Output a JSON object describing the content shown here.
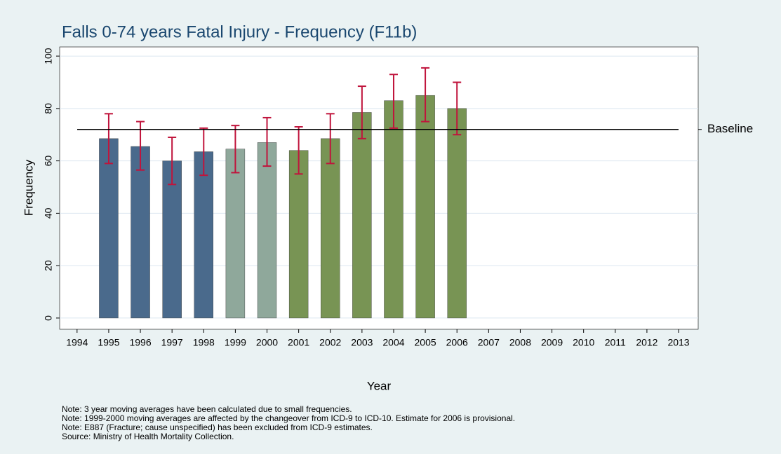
{
  "chart_data": {
    "type": "bar",
    "title": "Falls 0-74 years Fatal Injury - Frequency (F11b)",
    "x_label": "Year",
    "y_label": "Frequency",
    "x": [
      1995,
      1996,
      1997,
      1998,
      1999,
      2000,
      2001,
      2002,
      2003,
      2004,
      2005,
      2006
    ],
    "values": [
      68.5,
      65.5,
      60,
      63.5,
      64.5,
      67,
      64,
      68.5,
      78.5,
      83,
      85,
      80
    ],
    "lower": [
      59,
      56.5,
      51,
      54.5,
      55.5,
      58,
      55,
      59,
      68.5,
      72.5,
      75,
      70
    ],
    "upper": [
      78,
      75,
      69,
      72.5,
      73.5,
      76.5,
      73,
      78,
      88.5,
      93,
      95.5,
      90
    ],
    "colors": [
      "#4a6a8c",
      "#4a6a8c",
      "#4a6a8c",
      "#4a6a8c",
      "#8fa89b",
      "#8fa89b",
      "#789454",
      "#789454",
      "#789454",
      "#789454",
      "#789454",
      "#789454"
    ],
    "error_color": "#c0143c",
    "baseline": {
      "value": 72,
      "label": "Baseline"
    },
    "xlim": [
      1993.45,
      2013.62
    ],
    "xticks": [
      1994,
      1995,
      1996,
      1997,
      1998,
      1999,
      2000,
      2001,
      2002,
      2003,
      2004,
      2005,
      2006,
      2007,
      2008,
      2009,
      2010,
      2011,
      2012,
      2013
    ],
    "ylim": [
      -4.3,
      103.5
    ],
    "yticks": [
      0,
      20,
      40,
      60,
      80,
      100
    ],
    "grid": true,
    "notes": [
      "Note: 3 year moving averages have been calculated due to small frequencies.",
      "Note: 1999-2000 moving averages are affected by the changeover from ICD-9 to ICD-10. Estimate for 2006 is provisional.",
      "Note: E887 (Fracture; cause unspecified) has been excluded from ICD-9 estimates.",
      "Source: Ministry of Health Mortality Collection."
    ]
  }
}
